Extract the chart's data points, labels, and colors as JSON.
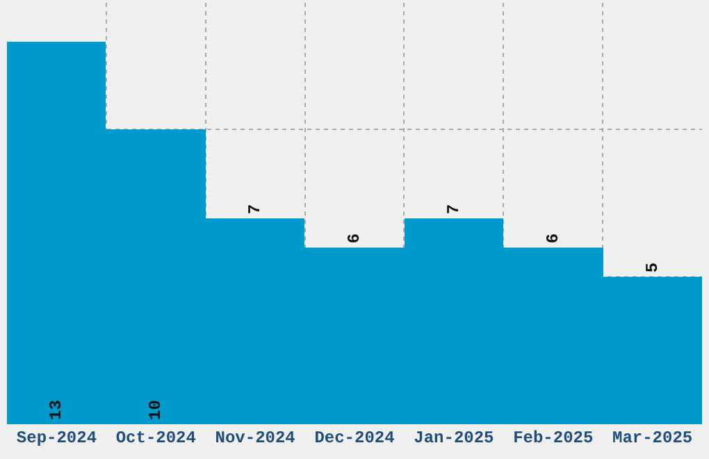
{
  "chart_data": {
    "type": "bar",
    "categories": [
      "Sep-2024",
      "Oct-2024",
      "Nov-2024",
      "Dec-2024",
      "Jan-2025",
      "Feb-2025",
      "Mar-2025"
    ],
    "values": [
      13,
      10,
      7,
      6,
      7,
      6,
      5
    ],
    "color": "#0099cc",
    "tick_labels": "x",
    "grid": true,
    "data_labels": true
  }
}
